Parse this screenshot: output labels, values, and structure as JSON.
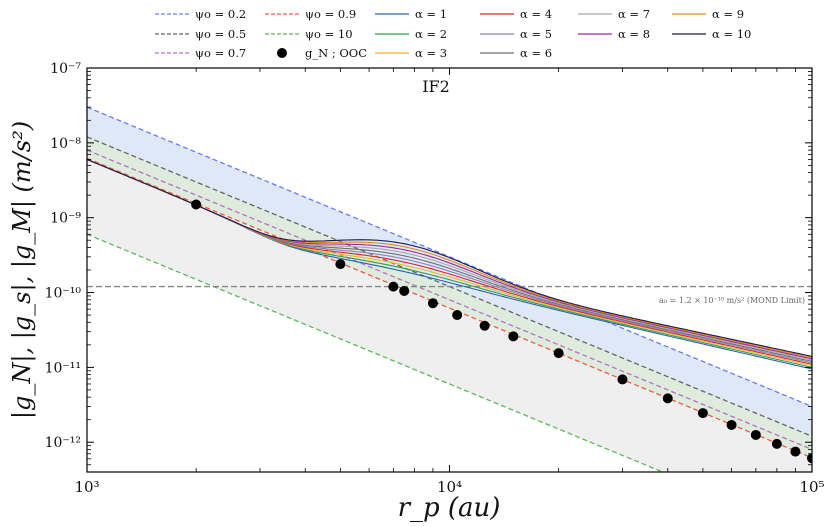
{
  "chart_data": {
    "type": "line",
    "panel_label": "IF2",
    "xlabel": "r_p (au)",
    "ylabel": "|g_N|, |g_s|, |g_M|  (m/s²)",
    "x_scale": "log",
    "y_scale": "log",
    "xlim": [
      1000,
      100000
    ],
    "ylim": [
      4e-13,
      1e-07
    ],
    "x_ticks": [
      {
        "value": 1000,
        "label": "10³"
      },
      {
        "value": 10000,
        "label": "10⁴"
      },
      {
        "value": 100000,
        "label": "10⁵"
      }
    ],
    "y_ticks": [
      {
        "value": 1e-12,
        "label": "10⁻¹²"
      },
      {
        "value": 1e-11,
        "label": "10⁻¹¹"
      },
      {
        "value": 1e-10,
        "label": "10⁻¹⁰"
      },
      {
        "value": 1e-09,
        "label": "10⁻⁹"
      },
      {
        "value": 1e-08,
        "label": "10⁻⁸"
      },
      {
        "value": 1e-07,
        "label": "10⁻⁷"
      }
    ],
    "mond_limit": {
      "value": 1.2e-10,
      "label": "a₀ = 1.2 × 10⁻¹⁰ m/s² (MOND Limit)",
      "color": "#888888"
    },
    "psi_lines": [
      {
        "name": "ψo = 0.2",
        "color": "#6a7cf0",
        "value_at_1e3": 3e-08
      },
      {
        "name": "ψo = 0.5",
        "color": "#666666",
        "value_at_1e3": 1.2e-08
      },
      {
        "name": "ψo = 0.7",
        "color": "#b870c8",
        "value_at_1e3": 8e-09
      },
      {
        "name": "ψo = 0.9",
        "color": "#ee5a4a",
        "value_at_1e3": 6.2e-09
      },
      {
        "name": "ψo = 10",
        "color": "#5cb85c",
        "value_at_1e3": 6e-10
      }
    ],
    "shaded_bands": [
      {
        "between": [
          "ψo = 0.2",
          "ψo = 0.5"
        ],
        "color": "#dce6f5"
      },
      {
        "between": [
          "ψo = 0.5",
          "ψo = 0.9"
        ],
        "color": "#dbe9d8"
      },
      {
        "between": [
          "ψo = 0.9",
          "ψo = 10"
        ],
        "color": "#ededed"
      }
    ],
    "ooc_points": {
      "name": "g_N ; OOC",
      "color": "#000000",
      "x": [
        2000,
        5000,
        7000,
        7500,
        9000,
        10500,
        12500,
        15000,
        20000,
        30000,
        40000,
        50000,
        60000,
        70000,
        80000,
        90000,
        100000
      ],
      "y": [
        1.5e-09,
        2.4e-10,
        1.2e-10,
        1.05e-10,
        7.2e-11,
        5e-11,
        3.6e-11,
        2.6e-11,
        1.55e-11,
        6.9e-12,
        3.85e-12,
        2.45e-12,
        1.7e-12,
        1.25e-12,
        9.5e-13,
        7.5e-13,
        6.1e-13
      ]
    },
    "alpha_curves": [
      {
        "name": "α = 1",
        "color": "#2b63b0",
        "y_at_1e5": 9.5e-12
      },
      {
        "name": "α = 2",
        "color": "#2ca04c",
        "y_at_1e5": 1e-11
      },
      {
        "name": "α = 3",
        "color": "#f2b530",
        "y_at_1e5": 1.05e-11
      },
      {
        "name": "α = 4",
        "color": "#d62728",
        "y_at_1e5": 1.1e-11
      },
      {
        "name": "α = 5",
        "color": "#9080b8",
        "y_at_1e5": 1.15e-11
      },
      {
        "name": "α = 6",
        "color": "#707070",
        "y_at_1e5": 1.2e-11
      },
      {
        "name": "α = 7",
        "color": "#a8a8a8",
        "y_at_1e5": 1.25e-11
      },
      {
        "name": "α = 8",
        "color": "#a02898",
        "y_at_1e5": 1.3e-11
      },
      {
        "name": "α = 9",
        "color": "#e08a1a",
        "y_at_1e5": 1.35e-11
      },
      {
        "name": "α = 10",
        "color": "#1a1a50",
        "y_at_1e5": 1.4e-11
      }
    ],
    "legend": {
      "placement": "top",
      "columns": [
        [
          "ψo = 0.2",
          "ψo = 0.5",
          "ψo = 0.7"
        ],
        [
          "ψo = 0.9",
          "ψo = 10",
          "g_N ; OOC"
        ],
        [
          "α = 1",
          "α = 2",
          "α = 3"
        ],
        [
          "α = 4",
          "α = 5",
          "α = 6"
        ],
        [
          "α = 7",
          "α = 8"
        ],
        [
          "α = 9",
          "α = 10"
        ]
      ]
    }
  }
}
